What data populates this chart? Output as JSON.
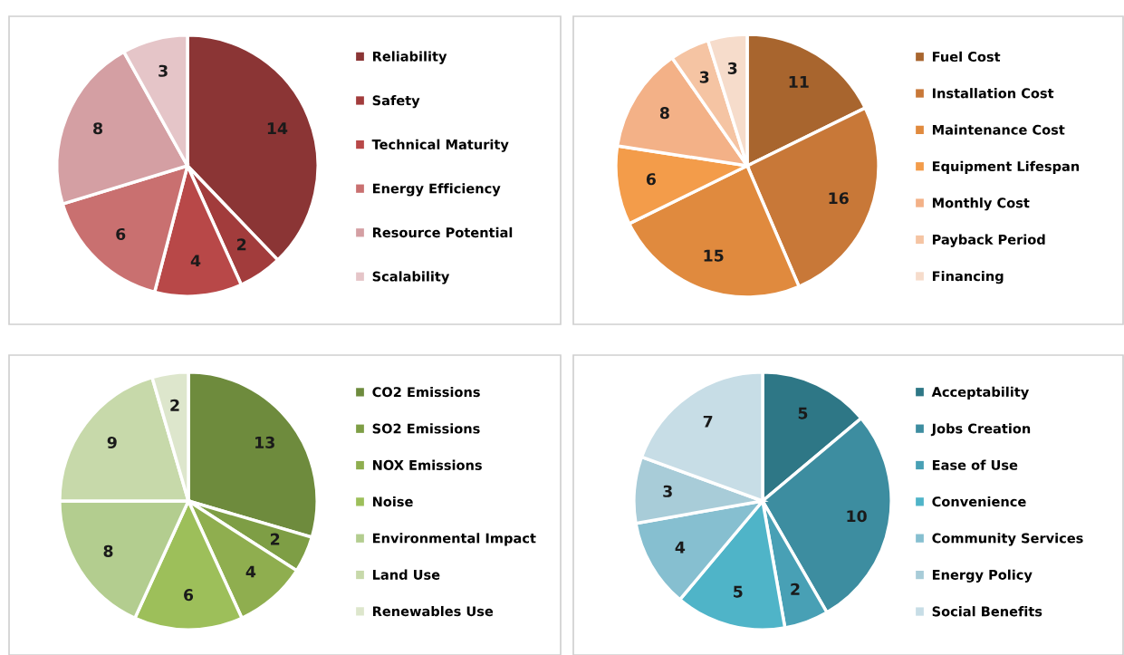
{
  "chart_data": [
    {
      "type": "pie",
      "categories": [
        "Reliability",
        "Safety",
        "Technical Maturity",
        "Energy Efficiency",
        "Resource Potential",
        "Scalability"
      ],
      "values": [
        14,
        2,
        4,
        6,
        8,
        3
      ],
      "colors": [
        "#8b3535",
        "#a23c3c",
        "#b84848",
        "#c97070",
        "#d49fa3",
        "#e5c5c8"
      ],
      "data_labels": true,
      "legend": "right"
    },
    {
      "type": "pie",
      "categories": [
        "Fuel Cost",
        "Installation Cost",
        "Maintenance Cost",
        "Equipment Lifespan",
        "Monthly Cost",
        "Payback Period",
        "Financing"
      ],
      "values": [
        11,
        16,
        15,
        6,
        8,
        3,
        3
      ],
      "colors": [
        "#a8652e",
        "#c87838",
        "#e08a3e",
        "#f39c4a",
        "#f3b187",
        "#f5c4a3",
        "#f6dccb"
      ],
      "data_labels": true,
      "legend": "right"
    },
    {
      "type": "pie",
      "categories": [
        "CO2 Emissions",
        "SO2 Emissions",
        "NOX Emissions",
        "Noise",
        "Environmental Impact",
        "Land Use",
        "Renewables Use"
      ],
      "values": [
        13,
        2,
        4,
        6,
        8,
        9,
        2
      ],
      "colors": [
        "#6e8b3d",
        "#7e9e45",
        "#8fae4f",
        "#9dbf5a",
        "#b3cd8f",
        "#c7d9aa",
        "#dde6cc"
      ],
      "data_labels": true,
      "legend": "right"
    },
    {
      "type": "pie",
      "categories": [
        "Acceptability",
        "Jobs Creation",
        "Ease of Use",
        "Convenience",
        "Community Services",
        "Energy Policy",
        "Social Benefits"
      ],
      "values": [
        5,
        10,
        2,
        5,
        4,
        3,
        7
      ],
      "colors": [
        "#2e7786",
        "#3d8da0",
        "#48a0b5",
        "#4fb4c8",
        "#86bfd0",
        "#a8ccd8",
        "#c7dde6"
      ],
      "data_labels": true,
      "legend": "right"
    }
  ]
}
